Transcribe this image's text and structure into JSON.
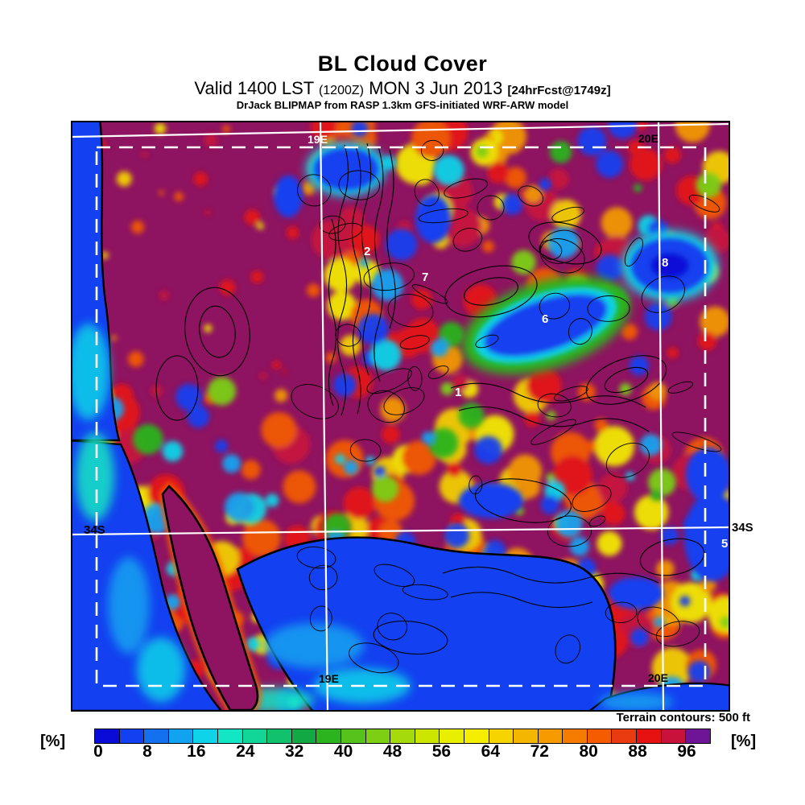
{
  "header": {
    "title": "BL Cloud Cover",
    "valid_prefix": "Valid 1400 LST",
    "valid_zulu": "(1200Z)",
    "valid_date": "MON 3 Jun 2013",
    "forecast_tag": "[24hrFcst@1749z]",
    "model_line": "DrJack BLIPMAP from RASP 1.3km GFS-initiated WRF-ARW model"
  },
  "map": {
    "grid_labels": {
      "meridian1_top": "19E",
      "meridian2_top": "20E",
      "parallel_left": "34S",
      "parallel_right": "34S",
      "meridian1_bottom": "19E",
      "meridian2_bottom": "20E"
    },
    "point_values": [
      {
        "text": "2"
      },
      {
        "text": "7"
      },
      {
        "text": "6"
      },
      {
        "text": "8"
      },
      {
        "text": "1"
      },
      {
        "text": "5"
      }
    ],
    "footnote": "Terrain contours: 500 ft",
    "colors": {
      "dominant_overcast": "#8e1360",
      "ocean_clear": "#1340f0",
      "grid_line": "#ffffff",
      "terrain_contour": "#000000"
    }
  },
  "colorbar": {
    "unit_left": "[%]",
    "unit_right": "[%]",
    "ticks": [
      "0",
      "8",
      "16",
      "24",
      "32",
      "40",
      "48",
      "56",
      "64",
      "72",
      "80",
      "88",
      "96"
    ],
    "colors": [
      "#0b0bd7",
      "#1340f0",
      "#1371f0",
      "#12a3f0",
      "#0fd3e8",
      "#12e6c4",
      "#12d598",
      "#12c16c",
      "#12a944",
      "#2cb41e",
      "#55c31c",
      "#7ccf12",
      "#a5db0a",
      "#cce600",
      "#e8ef00",
      "#f5ee00",
      "#f5d400",
      "#f5b600",
      "#f59b00",
      "#f57c00",
      "#f55c00",
      "#ea3a10",
      "#e61212",
      "#c8123c",
      "#6e1496"
    ]
  },
  "chart_data": {
    "type": "heatmap",
    "title": "BL Cloud Cover",
    "units": "%",
    "scale_min": 0,
    "scale_max": 100,
    "scale_step": 4,
    "tick_labels": [
      0,
      8,
      16,
      24,
      32,
      40,
      48,
      56,
      64,
      72,
      80,
      88,
      96
    ],
    "palette": [
      "#0b0bd7",
      "#1340f0",
      "#1371f0",
      "#12a3f0",
      "#0fd3e8",
      "#12e6c4",
      "#12d598",
      "#12c16c",
      "#12a944",
      "#2cb41e",
      "#55c31c",
      "#7ccf12",
      "#a5db0a",
      "#cce600",
      "#e8ef00",
      "#f5ee00",
      "#f5d400",
      "#f5b600",
      "#f59b00",
      "#f57c00",
      "#f55c00",
      "#ea3a10",
      "#e61212",
      "#c8123c",
      "#6e1496"
    ],
    "legend_note": "Terrain contours: 500 ft",
    "geo_reference": {
      "meridians": [
        "19E",
        "20E"
      ],
      "parallels": [
        "34S"
      ]
    }
  }
}
